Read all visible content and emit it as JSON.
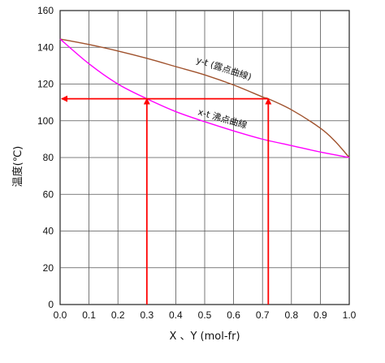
{
  "chart_data": {
    "type": "line",
    "xlabel": "X 、Y (mol-fr)",
    "ylabel": "温度(℃)",
    "xlim": [
      0,
      1
    ],
    "ylim": [
      0,
      160
    ],
    "x_ticks": [
      "0.0",
      "0.1",
      "0.2",
      "0.3",
      "0.4",
      "0.5",
      "0.6",
      "0.7",
      "0.8",
      "0.9",
      "1.0"
    ],
    "y_ticks": [
      "0",
      "20",
      "40",
      "60",
      "80",
      "100",
      "120",
      "140",
      "160"
    ],
    "grid": true,
    "series": [
      {
        "name": "y-t (露点曲線)",
        "color": "#a0522d",
        "x": [
          0.0,
          0.1,
          0.2,
          0.3,
          0.4,
          0.5,
          0.6,
          0.7,
          0.72,
          0.8,
          0.9,
          0.95,
          1.0
        ],
        "y": [
          144.5,
          141.5,
          138,
          134,
          129.5,
          125,
          119.5,
          113,
          112,
          106,
          96,
          89,
          80
        ]
      },
      {
        "name": "x-t 沸点曲線",
        "color": "#ff00ff",
        "x": [
          0.0,
          0.1,
          0.2,
          0.3,
          0.4,
          0.5,
          0.6,
          0.7,
          0.8,
          0.9,
          1.0
        ],
        "y": [
          144.5,
          131,
          120,
          112,
          105,
          99.5,
          94.5,
          90,
          86.5,
          83,
          80
        ]
      }
    ],
    "annotations": [
      {
        "type": "arrow_up",
        "x": 0.3,
        "from_y": 0,
        "to_y": 112,
        "color": "#ff0000"
      },
      {
        "type": "arrow_up",
        "x": 0.72,
        "from_y": 0,
        "to_y": 112,
        "color": "#ff0000"
      },
      {
        "type": "arrow_left",
        "y": 112,
        "from_x": 0.72,
        "to_x": 0.0,
        "color": "#ff0000"
      }
    ]
  }
}
